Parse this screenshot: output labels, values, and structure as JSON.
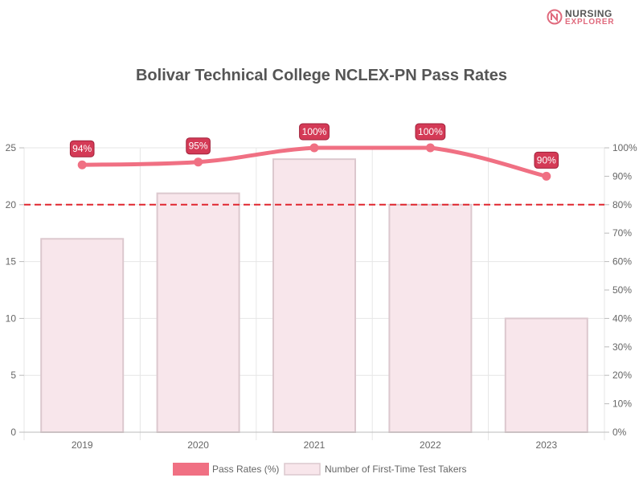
{
  "logo": {
    "line1": "NURSING",
    "line2": "EXPLORER"
  },
  "chart_data": {
    "type": "bar",
    "title": "Bolivar Technical College NCLEX-PN Pass Rates",
    "categories": [
      "2019",
      "2020",
      "2021",
      "2022",
      "2023"
    ],
    "series": [
      {
        "name": "Pass Rates (%)",
        "type": "line",
        "axis": "right",
        "values": [
          94,
          95,
          100,
          100,
          90
        ],
        "labels": [
          "94%",
          "95%",
          "100%",
          "100%",
          "90%"
        ],
        "color": "#f07083"
      },
      {
        "name": "Number of First-Time Test Takers",
        "type": "bar",
        "axis": "left",
        "values": [
          17,
          21,
          24,
          20,
          10
        ],
        "color": "#f8e6eb",
        "border_color": "#dcc8ce"
      }
    ],
    "y_left": {
      "min": 0,
      "max": 25,
      "ticks": [
        "0",
        "5",
        "10",
        "15",
        "20",
        "25"
      ]
    },
    "y_right": {
      "min": 0,
      "max": 100,
      "ticks": [
        "0%",
        "10%",
        "20%",
        "30%",
        "40%",
        "50%",
        "60%",
        "70%",
        "80%",
        "90%",
        "100%"
      ]
    },
    "reference_line": {
      "value": 80,
      "axis": "right",
      "color": "#e0262f",
      "style": "dashed"
    },
    "grid": true,
    "legend_position": "bottom",
    "colors": {
      "title": "#555555",
      "tick_text": "#666666",
      "grid": "#e6e6e6",
      "label_bg": "#d43a56"
    }
  }
}
